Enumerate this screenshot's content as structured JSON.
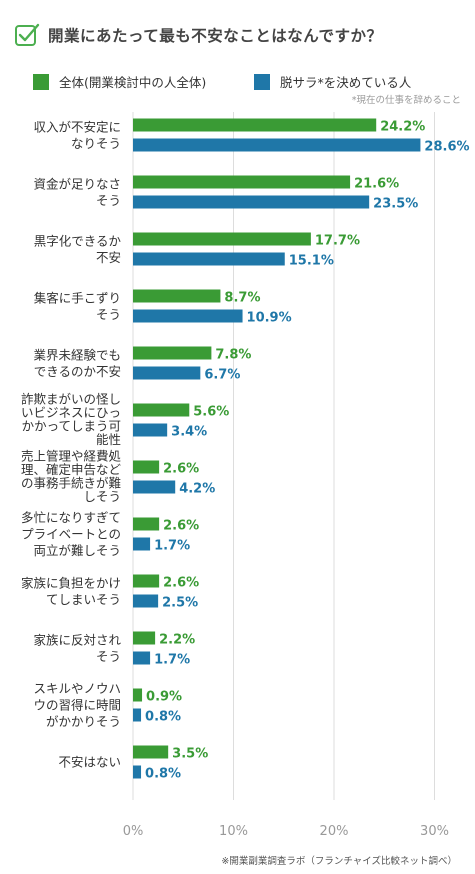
{
  "title": "開業にあたって最も不安なことはなんですか？",
  "legend": [
    {
      "label": "全体(開業検討中の人全体)",
      "color": "#3a9b35"
    },
    {
      "label": "脱サラ*を決めている人",
      "color": "#1f77a8"
    }
  ],
  "legend_note": "*現在の仕事を辞めること",
  "source": "※開業副業調査ラボ（フランチャイズ比較ネット調べ）",
  "colors": {
    "green": "#3a9b35",
    "blue": "#1f77a8",
    "grid": "#dddddd",
    "icon": "#4caf50"
  },
  "chart_data": {
    "type": "bar",
    "orientation": "horizontal",
    "categories": [
      [
        "収入が不安定に",
        "なりそう"
      ],
      [
        "資金が足りなさ",
        "そう"
      ],
      [
        "黒字化できるか",
        "不安"
      ],
      [
        "集客に手こずり",
        "そう"
      ],
      [
        "業界未経験でも",
        "できるのか不安"
      ],
      [
        "詐欺まがいの怪し",
        "いビジネスにひっ",
        "かかってしまう可",
        "能性"
      ],
      [
        "売上管理や経費処",
        "理、確定申告など",
        "の事務手続きが難",
        "しそう"
      ],
      [
        "多忙になりすぎて",
        "プライベートとの",
        "両立が難しそう"
      ],
      [
        "家族に負担をかけ",
        "てしまいそう"
      ],
      [
        "家族に反対され",
        "そう"
      ],
      [
        "スキルやノウハ",
        "ウの習得に時間",
        "がかかりそう"
      ],
      [
        "不安はない"
      ]
    ],
    "series": [
      {
        "name": "全体(開業検討中の人全体)",
        "values": [
          24.2,
          21.6,
          17.7,
          8.7,
          7.8,
          5.6,
          2.6,
          2.6,
          2.6,
          2.2,
          0.9,
          3.5
        ]
      },
      {
        "name": "脱サラ*を決めている人",
        "values": [
          28.6,
          23.5,
          15.1,
          10.9,
          6.7,
          3.4,
          4.2,
          1.7,
          2.5,
          1.7,
          0.8,
          0.8
        ]
      }
    ],
    "xlim": [
      0,
      30
    ],
    "xticks": [
      "0%",
      "10%",
      "20%",
      "30%"
    ],
    "value_suffix": "%",
    "grid": true
  }
}
